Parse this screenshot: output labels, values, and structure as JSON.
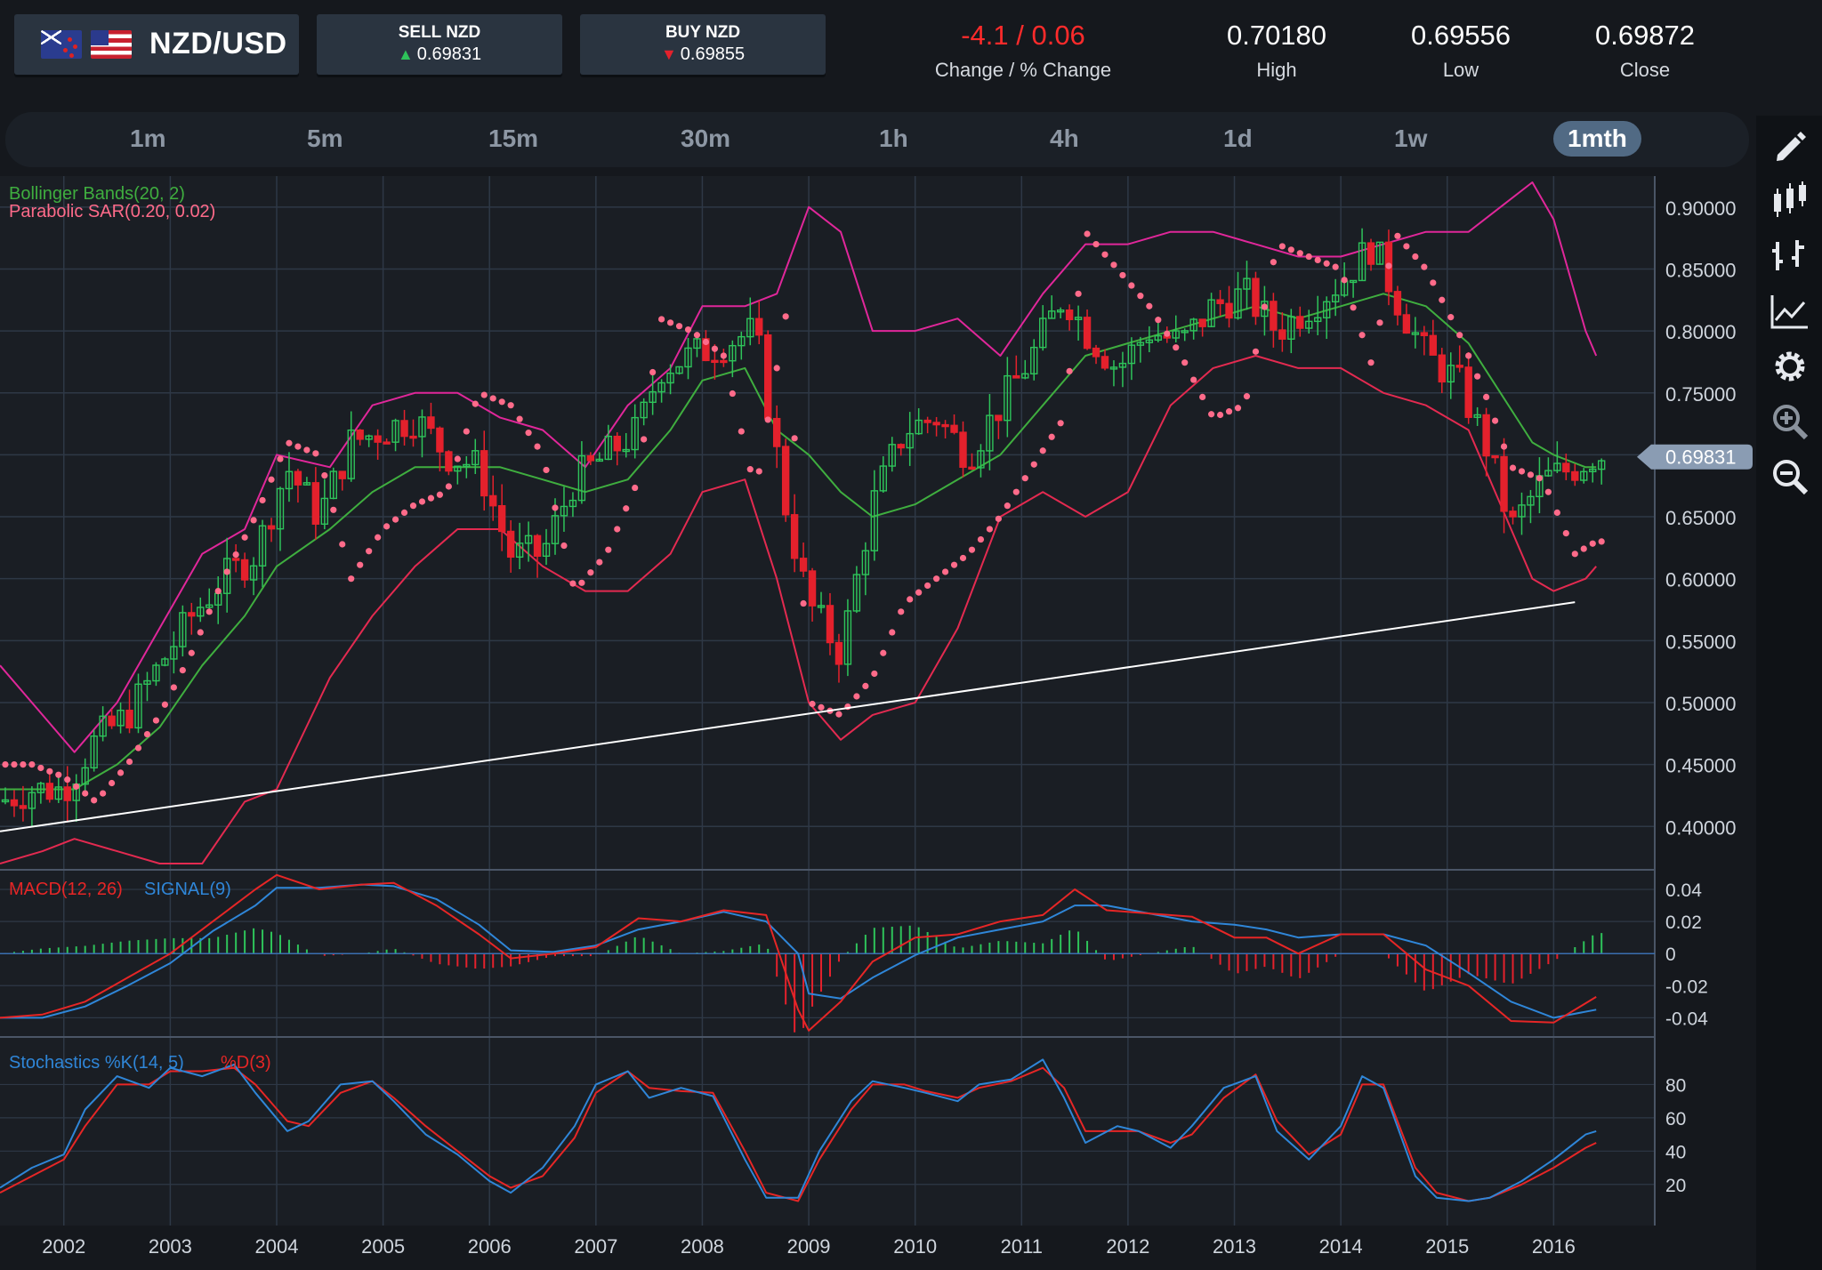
{
  "header": {
    "pair": "NZD/USD",
    "sell_label": "SELL NZD",
    "sell_price": "0.69831",
    "buy_label": "BUY NZD",
    "buy_price": "0.69855",
    "change": "-4.1 / 0.06",
    "change_label": "Change / % Change",
    "high": "0.70180",
    "high_label": "High",
    "low": "0.69556",
    "low_label": "Low",
    "close": "0.69872",
    "close_label": "Close"
  },
  "timeframes": [
    "1m",
    "5m",
    "15m",
    "30m",
    "1h",
    "4h",
    "1d",
    "1w",
    "1mth"
  ],
  "active_timeframe": "1mth",
  "tools": [
    "pencil-icon",
    "candlestick-icon",
    "bar-chart-icon",
    "line-chart-icon",
    "gear-icon",
    "zoom-in-icon",
    "zoom-out-icon"
  ],
  "colors": {
    "up": "#2ec35a",
    "down": "#e4212c",
    "bb_upper": "#e0279a",
    "bb_mid": "#3fae3f",
    "bb_lower": "#e32a50",
    "sar": "#ff6b8a",
    "macd": "#e62626",
    "signal": "#2f86d8",
    "stoch_k": "#2f86d8",
    "stoch_d": "#e62626",
    "current_tag": "#8a9cb3"
  },
  "chart_data": {
    "type": "line",
    "title": "",
    "xlabel": "",
    "ylabel": "",
    "x_ticks": [
      "2002",
      "2003",
      "2004",
      "2005",
      "2006",
      "2007",
      "2008",
      "2009",
      "2010",
      "2011",
      "2012",
      "2013",
      "2014",
      "2015",
      "2016"
    ],
    "price_ticks": [
      "0.90000",
      "0.85000",
      "0.80000",
      "0.75000",
      "0.70000",
      "0.65000",
      "0.60000",
      "0.55000",
      "0.50000",
      "0.45000",
      "0.40000"
    ],
    "ylim": [
      0.365,
      0.925
    ],
    "current_price": "0.69831",
    "indicator_labels": {
      "bollinger": "Bollinger Bands(20, 2)",
      "sar": "Parabolic SAR(0.20, 0.02)"
    },
    "close_series": {
      "name": "",
      "x": [
        2001.4,
        2001.7,
        2002.0,
        2002.3,
        2002.6,
        2002.9,
        2003.2,
        2003.5,
        2003.8,
        2004.1,
        2004.4,
        2004.7,
        2005.0,
        2005.3,
        2005.6,
        2005.9,
        2006.2,
        2006.5,
        2006.8,
        2007.1,
        2007.4,
        2007.6,
        2007.9,
        2008.2,
        2008.5,
        2008.8,
        2009.0,
        2009.3,
        2009.6,
        2009.9,
        2010.2,
        2010.5,
        2010.8,
        2011.1,
        2011.4,
        2011.6,
        2011.9,
        2012.2,
        2012.5,
        2012.8,
        2013.1,
        2013.4,
        2013.7,
        2014.0,
        2014.3,
        2014.5,
        2014.8,
        2015.1,
        2015.4,
        2015.6,
        2015.9,
        2016.2,
        2016.4
      ],
      "y": [
        0.42,
        0.43,
        0.43,
        0.47,
        0.49,
        0.53,
        0.57,
        0.6,
        0.62,
        0.69,
        0.65,
        0.71,
        0.72,
        0.73,
        0.7,
        0.69,
        0.62,
        0.62,
        0.68,
        0.7,
        0.72,
        0.77,
        0.78,
        0.79,
        0.8,
        0.65,
        0.58,
        0.54,
        0.66,
        0.72,
        0.73,
        0.7,
        0.74,
        0.78,
        0.83,
        0.8,
        0.77,
        0.8,
        0.79,
        0.82,
        0.83,
        0.8,
        0.82,
        0.84,
        0.87,
        0.83,
        0.78,
        0.76,
        0.7,
        0.64,
        0.68,
        0.69,
        0.7
      ]
    },
    "bollinger_upper": {
      "name": "",
      "x": [
        2001.4,
        2001.8,
        2002.1,
        2002.5,
        2002.9,
        2003.3,
        2003.7,
        2004.0,
        2004.5,
        2004.9,
        2005.3,
        2005.7,
        2006.1,
        2006.5,
        2006.9,
        2007.3,
        2007.7,
        2008.0,
        2008.4,
        2008.7,
        2009.0,
        2009.3,
        2009.6,
        2010.0,
        2010.4,
        2010.8,
        2011.2,
        2011.6,
        2012.0,
        2012.4,
        2012.8,
        2013.2,
        2013.6,
        2014.0,
        2014.4,
        2014.8,
        2015.2,
        2015.5,
        2015.8,
        2016.0,
        2016.3,
        2016.4
      ],
      "y": [
        0.53,
        0.49,
        0.46,
        0.5,
        0.56,
        0.62,
        0.64,
        0.7,
        0.69,
        0.74,
        0.75,
        0.75,
        0.73,
        0.72,
        0.69,
        0.74,
        0.77,
        0.82,
        0.82,
        0.83,
        0.9,
        0.88,
        0.8,
        0.8,
        0.81,
        0.78,
        0.83,
        0.87,
        0.87,
        0.88,
        0.88,
        0.87,
        0.86,
        0.86,
        0.87,
        0.88,
        0.88,
        0.9,
        0.92,
        0.89,
        0.8,
        0.78
      ]
    },
    "bollinger_mid": {
      "name": "",
      "x": [
        2001.4,
        2001.8,
        2002.1,
        2002.5,
        2002.9,
        2003.3,
        2003.7,
        2004.0,
        2004.5,
        2004.9,
        2005.3,
        2005.7,
        2006.1,
        2006.5,
        2006.9,
        2007.3,
        2007.7,
        2008.0,
        2008.4,
        2008.7,
        2009.0,
        2009.3,
        2009.6,
        2010.0,
        2010.4,
        2010.8,
        2011.2,
        2011.6,
        2012.0,
        2012.4,
        2012.8,
        2013.2,
        2013.6,
        2014.0,
        2014.4,
        2014.8,
        2015.2,
        2015.5,
        2015.8,
        2016.0,
        2016.3,
        2016.4
      ],
      "y": [
        0.43,
        0.43,
        0.43,
        0.45,
        0.48,
        0.53,
        0.57,
        0.61,
        0.64,
        0.67,
        0.69,
        0.69,
        0.69,
        0.68,
        0.67,
        0.68,
        0.72,
        0.76,
        0.77,
        0.72,
        0.7,
        0.67,
        0.65,
        0.66,
        0.68,
        0.7,
        0.74,
        0.78,
        0.79,
        0.8,
        0.81,
        0.82,
        0.81,
        0.82,
        0.83,
        0.82,
        0.79,
        0.75,
        0.71,
        0.7,
        0.69,
        0.69
      ]
    },
    "bollinger_lower": {
      "name": "",
      "x": [
        2001.4,
        2001.8,
        2002.1,
        2002.5,
        2002.9,
        2003.3,
        2003.7,
        2004.0,
        2004.5,
        2004.9,
        2005.3,
        2005.7,
        2006.1,
        2006.5,
        2006.9,
        2007.3,
        2007.7,
        2008.0,
        2008.4,
        2008.7,
        2009.0,
        2009.3,
        2009.6,
        2010.0,
        2010.4,
        2010.8,
        2011.2,
        2011.6,
        2012.0,
        2012.4,
        2012.8,
        2013.2,
        2013.6,
        2014.0,
        2014.4,
        2014.8,
        2015.2,
        2015.5,
        2015.8,
        2016.0,
        2016.3,
        2016.4
      ],
      "y": [
        0.37,
        0.38,
        0.39,
        0.38,
        0.37,
        0.37,
        0.42,
        0.43,
        0.52,
        0.57,
        0.61,
        0.64,
        0.64,
        0.61,
        0.59,
        0.59,
        0.62,
        0.67,
        0.68,
        0.6,
        0.5,
        0.47,
        0.49,
        0.5,
        0.56,
        0.65,
        0.67,
        0.65,
        0.67,
        0.74,
        0.77,
        0.78,
        0.77,
        0.77,
        0.75,
        0.74,
        0.72,
        0.66,
        0.6,
        0.59,
        0.6,
        0.61
      ]
    },
    "sar": {
      "name": "",
      "x": [
        2001.4,
        2001.7,
        2002.0,
        2002.3,
        2002.6,
        2002.9,
        2003.2,
        2003.5,
        2003.8,
        2004.1,
        2004.4,
        2004.7,
        2005.0,
        2005.3,
        2005.6,
        2005.9,
        2006.2,
        2006.5,
        2006.8,
        2007.1,
        2007.4,
        2007.6,
        2007.9,
        2008.2,
        2008.5,
        2008.8,
        2009.0,
        2009.3,
        2009.6,
        2009.9,
        2010.2,
        2010.5,
        2010.8,
        2011.1,
        2011.4,
        2011.6,
        2011.9,
        2012.2,
        2012.5,
        2012.8,
        2013.1,
        2013.4,
        2013.7,
        2014.0,
        2014.3,
        2014.5,
        2014.8,
        2015.1,
        2015.4,
        2015.6,
        2015.9,
        2016.2,
        2016.4
      ],
      "y": [
        0.45,
        0.45,
        0.44,
        0.42,
        0.45,
        0.49,
        0.54,
        0.6,
        0.65,
        0.71,
        0.7,
        0.6,
        0.64,
        0.66,
        0.67,
        0.75,
        0.74,
        0.7,
        0.59,
        0.62,
        0.68,
        0.81,
        0.8,
        0.78,
        0.67,
        0.82,
        0.5,
        0.49,
        0.52,
        0.58,
        0.6,
        0.62,
        0.65,
        0.69,
        0.73,
        0.88,
        0.85,
        0.82,
        0.78,
        0.73,
        0.74,
        0.87,
        0.86,
        0.85,
        0.77,
        0.88,
        0.85,
        0.8,
        0.74,
        0.69,
        0.68,
        0.62,
        0.63
      ]
    },
    "trendline": {
      "x": [
        2001.4,
        2016.2
      ],
      "y": [
        0.396,
        0.581
      ]
    },
    "macd_panel": {
      "labels": [
        "MACD(12, 26)",
        "SIGNAL(9)"
      ],
      "ticks": [
        "0.04",
        "0.02",
        "0",
        "-0.02",
        "-0.04"
      ],
      "ylim": [
        -0.052,
        0.05
      ],
      "x": [
        2001.4,
        2001.8,
        2002.2,
        2002.6,
        2003.0,
        2003.4,
        2003.8,
        2004.0,
        2004.4,
        2004.8,
        2005.1,
        2005.5,
        2005.9,
        2006.2,
        2006.6,
        2007.0,
        2007.4,
        2007.8,
        2008.2,
        2008.6,
        2008.9,
        2009.0,
        2009.3,
        2009.6,
        2010.0,
        2010.4,
        2010.8,
        2011.2,
        2011.5,
        2011.8,
        2012.2,
        2012.6,
        2013.0,
        2013.3,
        2013.6,
        2014.0,
        2014.4,
        2014.8,
        2015.2,
        2015.6,
        2016.0,
        2016.4
      ],
      "macd": [
        -0.04,
        -0.038,
        -0.03,
        -0.015,
        0.0,
        0.02,
        0.04,
        0.049,
        0.04,
        0.043,
        0.044,
        0.03,
        0.012,
        -0.003,
        0.0,
        0.004,
        0.022,
        0.02,
        0.027,
        0.024,
        -0.035,
        -0.048,
        -0.03,
        -0.005,
        0.01,
        0.012,
        0.02,
        0.024,
        0.04,
        0.027,
        0.025,
        0.023,
        0.01,
        0.01,
        0.0,
        0.012,
        0.012,
        -0.01,
        -0.02,
        -0.042,
        -0.043,
        -0.027
      ],
      "signal": [
        -0.04,
        -0.04,
        -0.033,
        -0.02,
        -0.006,
        0.014,
        0.03,
        0.041,
        0.041,
        0.043,
        0.042,
        0.034,
        0.018,
        0.002,
        0.001,
        0.005,
        0.015,
        0.02,
        0.026,
        0.02,
        0.0,
        -0.025,
        -0.028,
        -0.015,
        -0.001,
        0.01,
        0.015,
        0.02,
        0.03,
        0.03,
        0.025,
        0.02,
        0.018,
        0.015,
        0.01,
        0.012,
        0.012,
        0.005,
        -0.012,
        -0.03,
        -0.04,
        -0.035
      ]
    },
    "stoch_panel": {
      "labels": [
        "Stochastics %K(14, 5)",
        "%D(3)"
      ],
      "ticks": [
        "80",
        "60",
        "40",
        "20"
      ],
      "ylim": [
        0,
        100
      ],
      "x": [
        2001.4,
        2001.7,
        2002.0,
        2002.2,
        2002.5,
        2002.8,
        2003.0,
        2003.3,
        2003.6,
        2003.8,
        2004.1,
        2004.3,
        2004.6,
        2004.9,
        2005.1,
        2005.4,
        2005.7,
        2006.0,
        2006.2,
        2006.5,
        2006.8,
        2007.0,
        2007.3,
        2007.5,
        2007.8,
        2008.1,
        2008.4,
        2008.6,
        2008.9,
        2009.1,
        2009.4,
        2009.6,
        2009.9,
        2010.1,
        2010.4,
        2010.6,
        2010.9,
        2011.2,
        2011.4,
        2011.6,
        2011.9,
        2012.1,
        2012.4,
        2012.6,
        2012.9,
        2013.2,
        2013.4,
        2013.7,
        2014.0,
        2014.2,
        2014.4,
        2014.7,
        2014.9,
        2015.2,
        2015.4,
        2015.7,
        2016.0,
        2016.3,
        2016.4
      ],
      "k": [
        18,
        30,
        38,
        65,
        85,
        78,
        90,
        85,
        92,
        75,
        52,
        58,
        80,
        82,
        70,
        50,
        38,
        22,
        15,
        30,
        55,
        80,
        88,
        72,
        78,
        73,
        35,
        12,
        12,
        40,
        70,
        82,
        78,
        75,
        70,
        80,
        83,
        95,
        72,
        45,
        55,
        52,
        42,
        55,
        78,
        85,
        52,
        35,
        55,
        85,
        78,
        25,
        12,
        10,
        12,
        22,
        35,
        50,
        52
      ],
      "d": [
        15,
        25,
        35,
        55,
        80,
        80,
        88,
        88,
        90,
        80,
        58,
        55,
        75,
        82,
        72,
        55,
        40,
        25,
        18,
        25,
        48,
        75,
        88,
        78,
        76,
        75,
        40,
        15,
        10,
        35,
        65,
        80,
        80,
        76,
        72,
        78,
        82,
        90,
        78,
        52,
        52,
        52,
        45,
        50,
        72,
        86,
        58,
        38,
        50,
        80,
        80,
        30,
        15,
        10,
        12,
        20,
        30,
        42,
        45
      ]
    }
  }
}
